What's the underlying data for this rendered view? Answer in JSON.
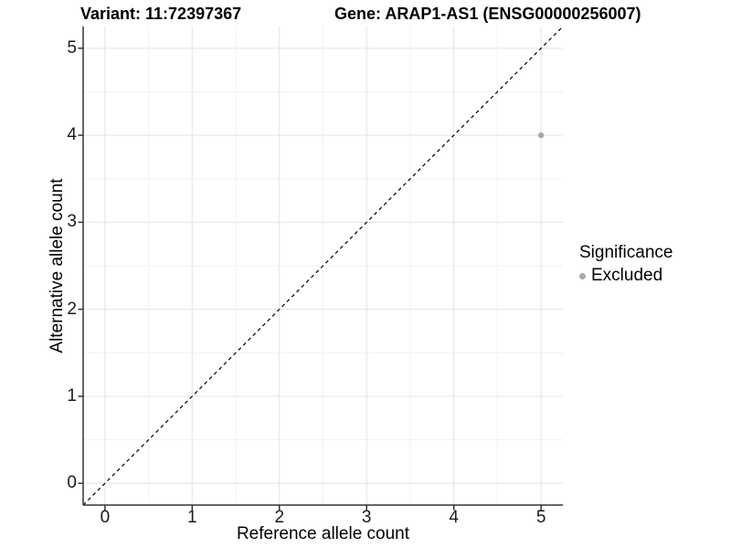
{
  "titles": {
    "variant": "Variant: 11:72397367",
    "gene": "Gene: ARAP1-AS1 (ENSG00000256007)"
  },
  "chart_data": {
    "type": "scatter",
    "title_left": "Variant: 11:72397367",
    "title_right": "Gene: ARAP1-AS1 (ENSG00000256007)",
    "xlabel": "Reference allele count",
    "ylabel": "Alternative allele count",
    "xlim": [
      -0.25,
      5.25
    ],
    "ylim": [
      -0.25,
      5.25
    ],
    "xticks": [
      0,
      1,
      2,
      3,
      4,
      5
    ],
    "yticks": [
      0,
      1,
      2,
      3,
      4,
      5
    ],
    "minor_ticks": [
      0.5,
      1.5,
      2.5,
      3.5,
      4.5
    ],
    "grid": "major and minor, light gray on white",
    "series": [
      {
        "name": "Excluded",
        "points": [
          {
            "x": 5,
            "y": 4
          }
        ]
      }
    ],
    "reference_line": {
      "type": "identity y=x",
      "style": "dashed",
      "color": "#000000"
    },
    "legend": {
      "title": "Significance",
      "position": "right",
      "entries": [
        {
          "label": "Excluded",
          "marker": "circle"
        }
      ]
    }
  },
  "colors": {
    "point": "#a8a8a8",
    "legend_marker": "#a8a8a8",
    "grid_major": "#e3e3e3",
    "grid_minor": "#f1f1f1",
    "axis_line": "#333333",
    "dashed_line": "#000000"
  }
}
